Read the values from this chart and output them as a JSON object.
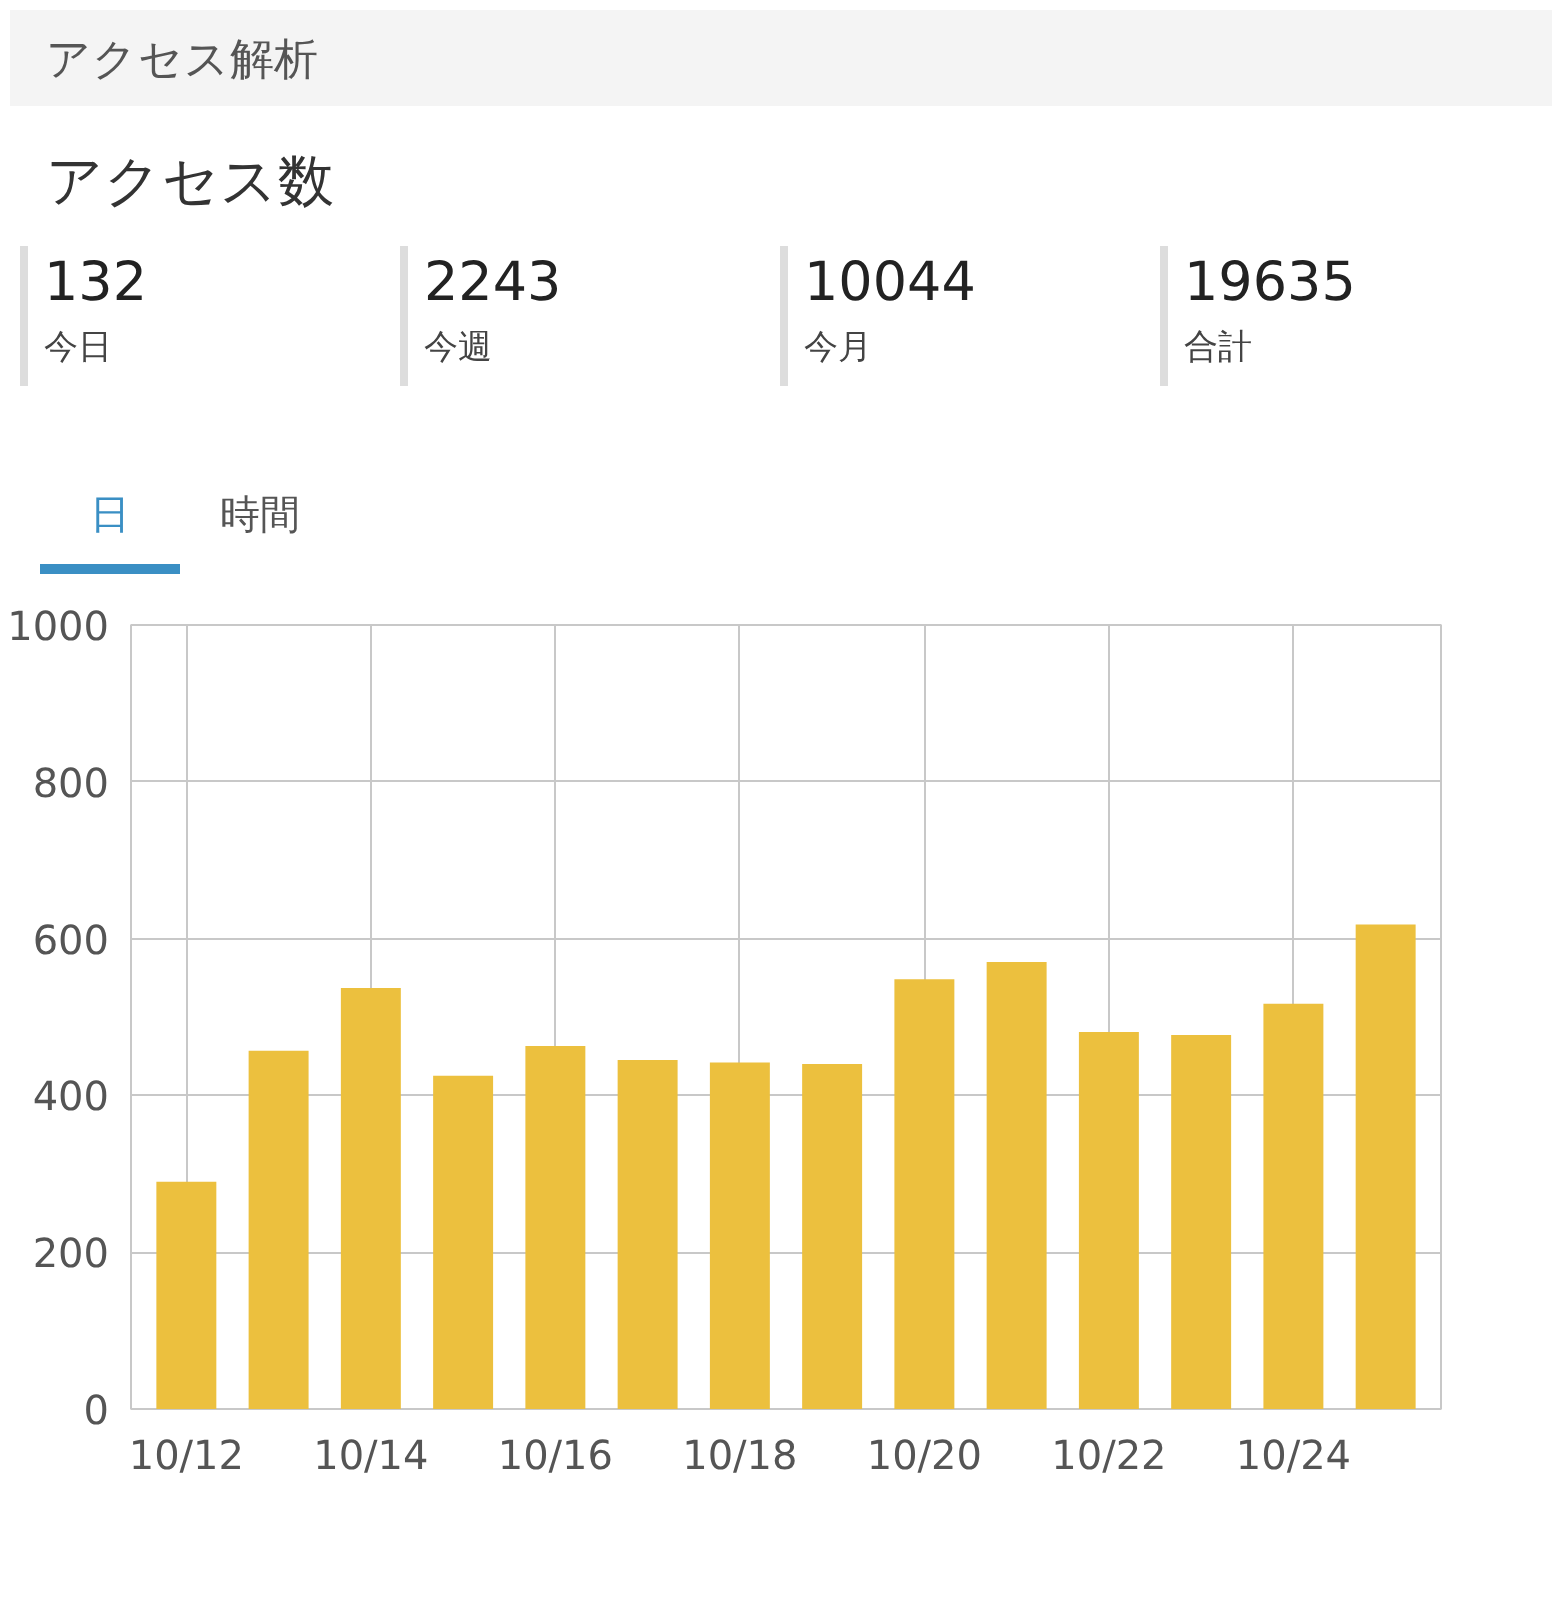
{
  "chart_data": {
    "type": "bar",
    "title": "アクセス解析",
    "subtitle": "アクセス数",
    "annotations": [
      "132",
      "今日",
      "2243",
      "今週",
      "10044",
      "今月",
      "19635",
      "合計",
      "日",
      "時間"
    ],
    "categories": [
      "10/12",
      null,
      "10/14",
      null,
      "10/16",
      null,
      "10/18",
      null,
      "10/20",
      null,
      "10/22",
      null,
      "10/24",
      null
    ],
    "values": [
      290,
      457,
      537,
      425,
      463,
      445,
      442,
      440,
      548,
      570,
      481,
      477,
      517,
      618
    ],
    "color": "#ecc03e",
    "ylim": [
      0,
      1000
    ],
    "yticks": [
      0,
      200,
      400,
      600,
      800,
      1000
    ],
    "grid": true
  }
}
